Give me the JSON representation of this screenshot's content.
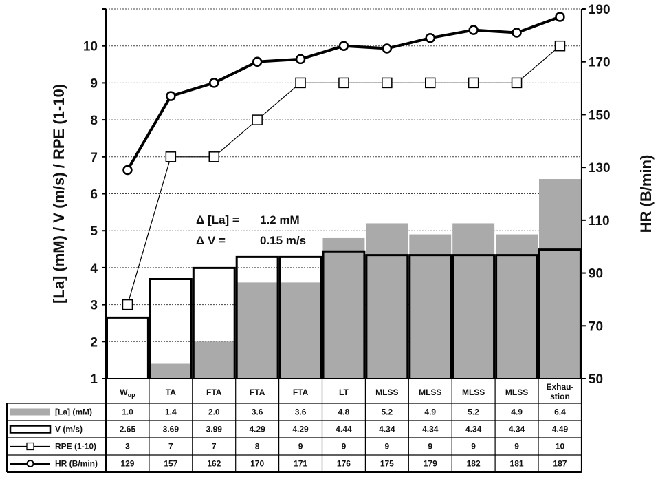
{
  "chart_data": {
    "type": "bar",
    "categories": [
      "Wup",
      "TA",
      "FTA",
      "FTA",
      "FTA",
      "LT",
      "MLSS",
      "MLSS",
      "MLSS",
      "MLSS",
      "Exhau-\nstion"
    ],
    "series": [
      {
        "name": "[La] (mM)",
        "kind": "bar-filled",
        "axis": "left",
        "values": [
          1.0,
          1.4,
          2.0,
          3.6,
          3.6,
          4.8,
          5.2,
          4.9,
          5.2,
          4.9,
          6.4
        ]
      },
      {
        "name": "V (m/s)",
        "kind": "bar-outline",
        "axis": "left",
        "values": [
          2.65,
          3.69,
          3.99,
          4.29,
          4.29,
          4.44,
          4.34,
          4.34,
          4.34,
          4.34,
          4.49
        ]
      },
      {
        "name": "RPE (1-10)",
        "kind": "line-square",
        "axis": "left",
        "values": [
          3,
          7,
          7,
          8,
          9,
          9,
          9,
          9,
          9,
          9,
          10
        ]
      },
      {
        "name": "HR (B/min)",
        "kind": "line-circle",
        "axis": "right",
        "values": [
          129,
          157,
          162,
          170,
          171,
          176,
          175,
          179,
          182,
          181,
          187
        ]
      }
    ],
    "ylabel": "[La] (mM) / V (m/s) / RPE (1-10)",
    "y2label": "HR (B/min)",
    "ylim": [
      1,
      11
    ],
    "y2lim": [
      50,
      190
    ],
    "yticks": [
      1,
      2,
      3,
      4,
      5,
      6,
      7,
      8,
      9,
      10
    ],
    "y2ticks": [
      50,
      70,
      90,
      110,
      130,
      150,
      170,
      190
    ],
    "grid": true,
    "annotations": [
      {
        "label": "Δ [La] =",
        "value": "1.2 mM"
      },
      {
        "label": "Δ V   =",
        "value": "0.15 m/s"
      }
    ],
    "table_rows": [
      {
        "label": "[La] (mM)",
        "cells": [
          "1.0",
          "1.4",
          "2.0",
          "3.6",
          "3.6",
          "4.8",
          "5.2",
          "4.9",
          "5.2",
          "4.9",
          "6.4"
        ]
      },
      {
        "label": "V (m/s)",
        "cells": [
          "2.65",
          "3.69",
          "3.99",
          "4.29",
          "4.29",
          "4.44",
          "4.34",
          "4.34",
          "4.34",
          "4.34",
          "4.49"
        ]
      },
      {
        "label": "RPE (1-10)",
        "cells": [
          "3",
          "7",
          "7",
          "8",
          "9",
          "9",
          "9",
          "9",
          "9",
          "9",
          "10"
        ]
      },
      {
        "label": "HR (B/min)",
        "cells": [
          "129",
          "157",
          "162",
          "170",
          "171",
          "176",
          "175",
          "179",
          "182",
          "181",
          "187"
        ]
      }
    ],
    "colors": {
      "la_fill": "#aaaaaa",
      "line": "#000000",
      "grid": "#444444"
    }
  }
}
